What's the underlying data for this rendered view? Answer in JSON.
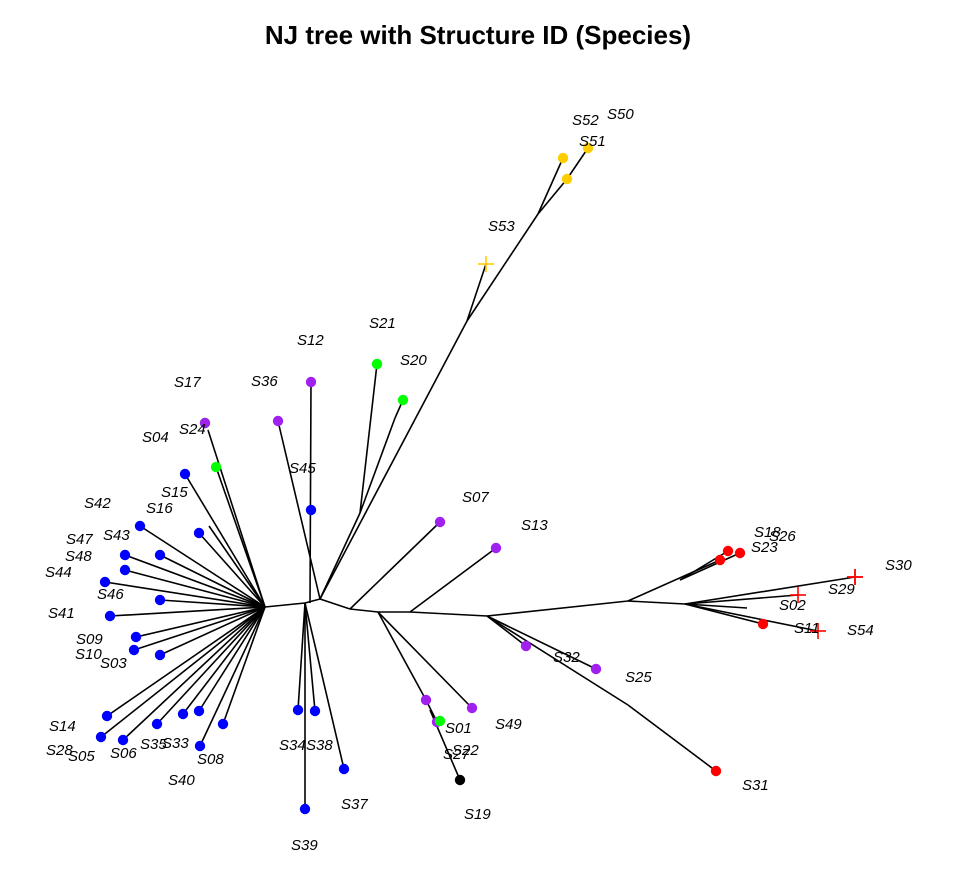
{
  "title": "NJ tree with Structure ID (Species)",
  "chart_data": {
    "type": "tree",
    "title": "NJ tree with Structure ID (Species)",
    "legend": "none",
    "colors": {
      "blue": "#0000ff",
      "green": "#00ff00",
      "purple": "#a020f0",
      "red": "#ff0000",
      "gold": "#ffcc00",
      "black": "#000000"
    },
    "tips": [
      {
        "label": "S01",
        "color": "purple",
        "marker": "dot"
      },
      {
        "label": "S02",
        "color": "red",
        "marker": "cross"
      },
      {
        "label": "S03",
        "color": "blue",
        "marker": "dot"
      },
      {
        "label": "S04",
        "color": "green",
        "marker": "dot"
      },
      {
        "label": "S05",
        "color": "blue",
        "marker": "dot"
      },
      {
        "label": "S06",
        "color": "blue",
        "marker": "dot"
      },
      {
        "label": "S07",
        "color": "purple",
        "marker": "dot"
      },
      {
        "label": "S08",
        "color": "blue",
        "marker": "dot"
      },
      {
        "label": "S09",
        "color": "blue",
        "marker": "dot"
      },
      {
        "label": "S10",
        "color": "blue",
        "marker": "dot"
      },
      {
        "label": "S11",
        "color": "red",
        "marker": "dot"
      },
      {
        "label": "S12",
        "color": "purple",
        "marker": "dot"
      },
      {
        "label": "S13",
        "color": "purple",
        "marker": "dot"
      },
      {
        "label": "S14",
        "color": "blue",
        "marker": "dot"
      },
      {
        "label": "S15",
        "color": "blue",
        "marker": "dot"
      },
      {
        "label": "S16",
        "color": "blue",
        "marker": "dot"
      },
      {
        "label": "S17",
        "color": "green",
        "marker": "dot"
      },
      {
        "label": "S18",
        "color": "red",
        "marker": "dot"
      },
      {
        "label": "S19",
        "color": "black",
        "marker": "dot"
      },
      {
        "label": "S20",
        "color": "green",
        "marker": "dot"
      },
      {
        "label": "S21",
        "color": "green",
        "marker": "dot"
      },
      {
        "label": "S22",
        "color": "green",
        "marker": "dot"
      },
      {
        "label": "S23",
        "color": "red",
        "marker": "dot"
      },
      {
        "label": "S24",
        "color": "purple",
        "marker": "dot"
      },
      {
        "label": "S25",
        "color": "purple",
        "marker": "dot"
      },
      {
        "label": "S26",
        "color": "red",
        "marker": "dot"
      },
      {
        "label": "S27",
        "color": "purple",
        "marker": "dot"
      },
      {
        "label": "S28",
        "color": "blue",
        "marker": "dot"
      },
      {
        "label": "S29",
        "color": "red",
        "marker": "cross"
      },
      {
        "label": "S30",
        "color": "red",
        "marker": "cross"
      },
      {
        "label": "S31",
        "color": "red",
        "marker": "dot"
      },
      {
        "label": "S32",
        "color": "purple",
        "marker": "dot"
      },
      {
        "label": "S33",
        "color": "blue",
        "marker": "dot"
      },
      {
        "label": "S34",
        "color": "blue",
        "marker": "dot"
      },
      {
        "label": "S35",
        "color": "blue",
        "marker": "dot"
      },
      {
        "label": "S36",
        "color": "purple",
        "marker": "dot"
      },
      {
        "label": "S37",
        "color": "blue",
        "marker": "dot"
      },
      {
        "label": "S38",
        "color": "blue",
        "marker": "dot"
      },
      {
        "label": "S39",
        "color": "blue",
        "marker": "dot"
      },
      {
        "label": "S40",
        "color": "blue",
        "marker": "dot"
      },
      {
        "label": "S41",
        "color": "blue",
        "marker": "dot"
      },
      {
        "label": "S42",
        "color": "blue",
        "marker": "dot"
      },
      {
        "label": "S43",
        "color": "blue",
        "marker": "dot"
      },
      {
        "label": "S44",
        "color": "blue",
        "marker": "dot"
      },
      {
        "label": "S45",
        "color": "blue",
        "marker": "dot"
      },
      {
        "label": "S46",
        "color": "blue",
        "marker": "dot"
      },
      {
        "label": "S47",
        "color": "blue",
        "marker": "dot"
      },
      {
        "label": "S48",
        "color": "blue",
        "marker": "dot"
      },
      {
        "label": "S49",
        "color": "purple",
        "marker": "dot"
      },
      {
        "label": "S50",
        "color": "gold",
        "marker": "dot"
      },
      {
        "label": "S51",
        "color": "gold",
        "marker": "dot"
      },
      {
        "label": "S52",
        "color": "gold",
        "marker": "dot"
      },
      {
        "label": "S53",
        "color": "gold",
        "marker": "cross"
      },
      {
        "label": "S54",
        "color": "red",
        "marker": "cross"
      }
    ]
  }
}
